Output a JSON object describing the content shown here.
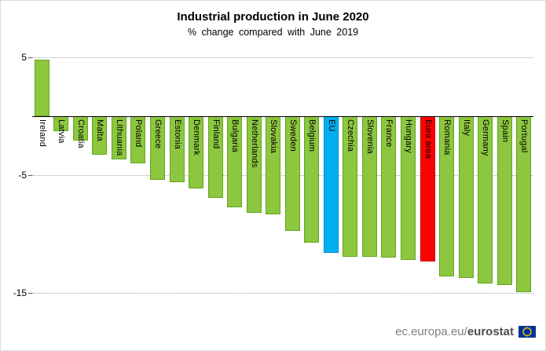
{
  "chart_data": {
    "type": "bar",
    "title": "Industrial production in June 2020",
    "subtitle": "% change compared with June 2019",
    "categories": [
      "Ireland",
      "Latvia",
      "Croatia",
      "Malta",
      "Lithuania",
      "Poland",
      "Greece",
      "Estonia",
      "Denmark",
      "Finland",
      "Bulgaria",
      "Netherlands",
      "Slovakia",
      "Sweden",
      "Belgium",
      "EU",
      "Czechia",
      "Slovenia",
      "France",
      "Hungary",
      "Euro area",
      "Romania",
      "Italy",
      "Germany",
      "Spain",
      "Portugal"
    ],
    "values": [
      4.8,
      -1.3,
      -2.1,
      -3.3,
      -3.7,
      -4.0,
      -5.4,
      -5.6,
      -6.1,
      -6.9,
      -7.7,
      -8.2,
      -8.3,
      -9.7,
      -10.7,
      -11.6,
      -11.9,
      -11.9,
      -12.0,
      -12.2,
      -12.3,
      -13.6,
      -13.7,
      -14.2,
      -14.3,
      -14.9
    ],
    "default_bar_color": "#8DC63F",
    "default_bar_border": "#61A521",
    "bar_colors": {
      "EU": "#00B0F0",
      "Euro area": "#FF0000"
    },
    "bar_border_colors": {
      "EU": "#0087C8",
      "Euro area": "#C00000"
    },
    "ylim": [
      -16.7,
      5.5
    ],
    "yticks": [
      5,
      -5,
      -15
    ],
    "grid": "horizontal-dotted",
    "legend": "none",
    "xlabel": "",
    "ylabel": ""
  },
  "footer": {
    "url_prefix": "ec.europa.eu/",
    "brand": "eurostat",
    "flag_icon": "eu-flag",
    "flag_colors": {
      "field": "#003399",
      "stars": "#FFCC00"
    }
  }
}
